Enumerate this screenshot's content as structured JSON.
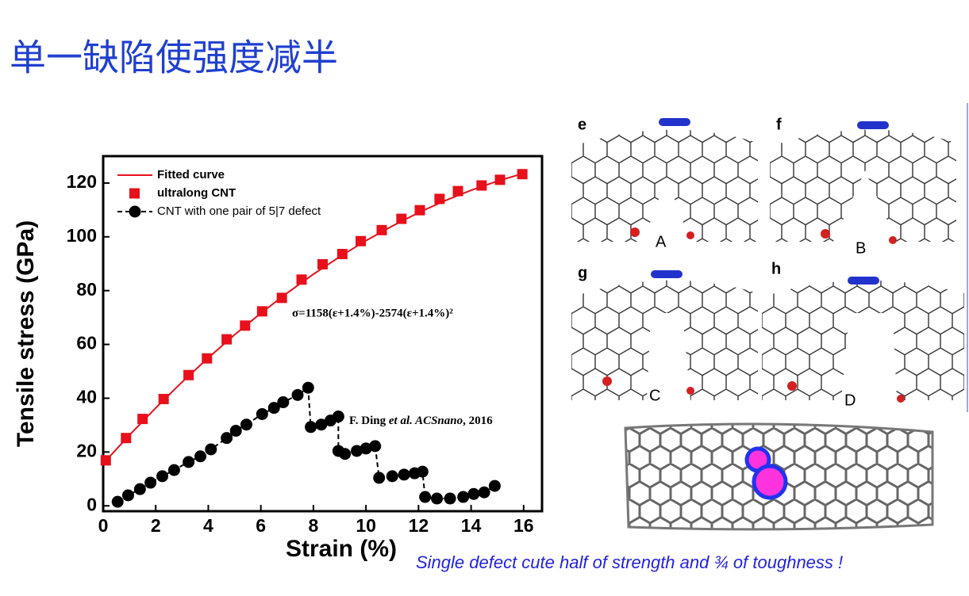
{
  "slide_title": "单一缺陷使强度减半",
  "caption": "Single defect cute half of strength and ¾ of toughness !",
  "panels": [
    {
      "letter": "e",
      "label": "A"
    },
    {
      "letter": "f",
      "label": "B"
    },
    {
      "letter": "g",
      "label": "C"
    },
    {
      "letter": "h",
      "label": "D"
    }
  ],
  "chart_data": {
    "type": "line",
    "x_label": "Strain (%)",
    "y_label": "Tensile stress (GPa)",
    "xlim": [
      0,
      16.7
    ],
    "ylim": [
      -2,
      130
    ],
    "xticks": [
      0,
      2,
      4,
      6,
      8,
      10,
      12,
      14,
      16
    ],
    "yticks": [
      0,
      20,
      40,
      60,
      80,
      100,
      120
    ],
    "annotation": "σ=1158(ε+1.4%)-2574(ε+1.4%)²",
    "citation": [
      "F. Ding ",
      "et al. ACSnano",
      ", 2016"
    ],
    "series": [
      {
        "name": "Fitted curve",
        "color": "#e8101a",
        "line": "solid",
        "marker": "none",
        "x": [
          0,
          1,
          2,
          3,
          4,
          5,
          6,
          7,
          8,
          9,
          10,
          11,
          12,
          13,
          14,
          15,
          16
        ],
        "values": [
          15.7,
          26.3,
          36.4,
          46.0,
          55.0,
          63.6,
          71.6,
          79.1,
          86.1,
          92.6,
          98.6,
          104.0,
          109.0,
          113.4,
          117.3,
          120.7,
          123.6
        ]
      },
      {
        "name": "ultralong CNT",
        "color": "#e8101a",
        "line": "none",
        "marker": "square",
        "x": [
          0.1,
          0.87,
          1.5,
          2.3,
          3.25,
          3.95,
          4.7,
          5.4,
          6.05,
          6.8,
          7.55,
          8.35,
          9.1,
          9.8,
          10.6,
          11.35,
          12.05,
          12.8,
          13.5,
          14.4,
          15.1,
          15.95
        ],
        "values": [
          16.9,
          25.2,
          32.3,
          39.7,
          48.6,
          54.8,
          61.9,
          67,
          72.3,
          77.3,
          84.1,
          89.8,
          93.6,
          98.4,
          102.5,
          106.7,
          109.9,
          114.1,
          117,
          119.1,
          121.2,
          123.3
        ]
      },
      {
        "name": "CNT with one pair of 5|7 defect",
        "color": "#000000",
        "line": "dashed",
        "marker": "circle",
        "x": [
          0.55,
          0.95,
          1.4,
          1.8,
          2.25,
          2.7,
          3.25,
          3.7,
          4.1,
          4.7,
          5.05,
          5.45,
          6.05,
          6.5,
          6.85,
          7.4,
          7.8,
          7.9,
          8.3,
          8.65,
          8.95,
          8.95,
          9.2,
          9.65,
          10,
          10.35,
          10.5,
          11,
          11.45,
          11.85,
          12.15,
          12.25,
          12.7,
          13.2,
          13.7,
          14.1,
          14.5,
          14.9
        ],
        "values": [
          1.5,
          3.9,
          6.2,
          8.6,
          11,
          13.3,
          16.3,
          18.4,
          21,
          25.2,
          27.9,
          30.2,
          34.1,
          36.4,
          38.5,
          41.2,
          43.9,
          29.3,
          30.2,
          31.7,
          33.2,
          20.4,
          19.3,
          20.4,
          21.3,
          22.2,
          10.4,
          11,
          11.6,
          12.1,
          12.7,
          3.3,
          2.7,
          2.7,
          3.3,
          4.4,
          5,
          7.4
        ]
      }
    ]
  }
}
